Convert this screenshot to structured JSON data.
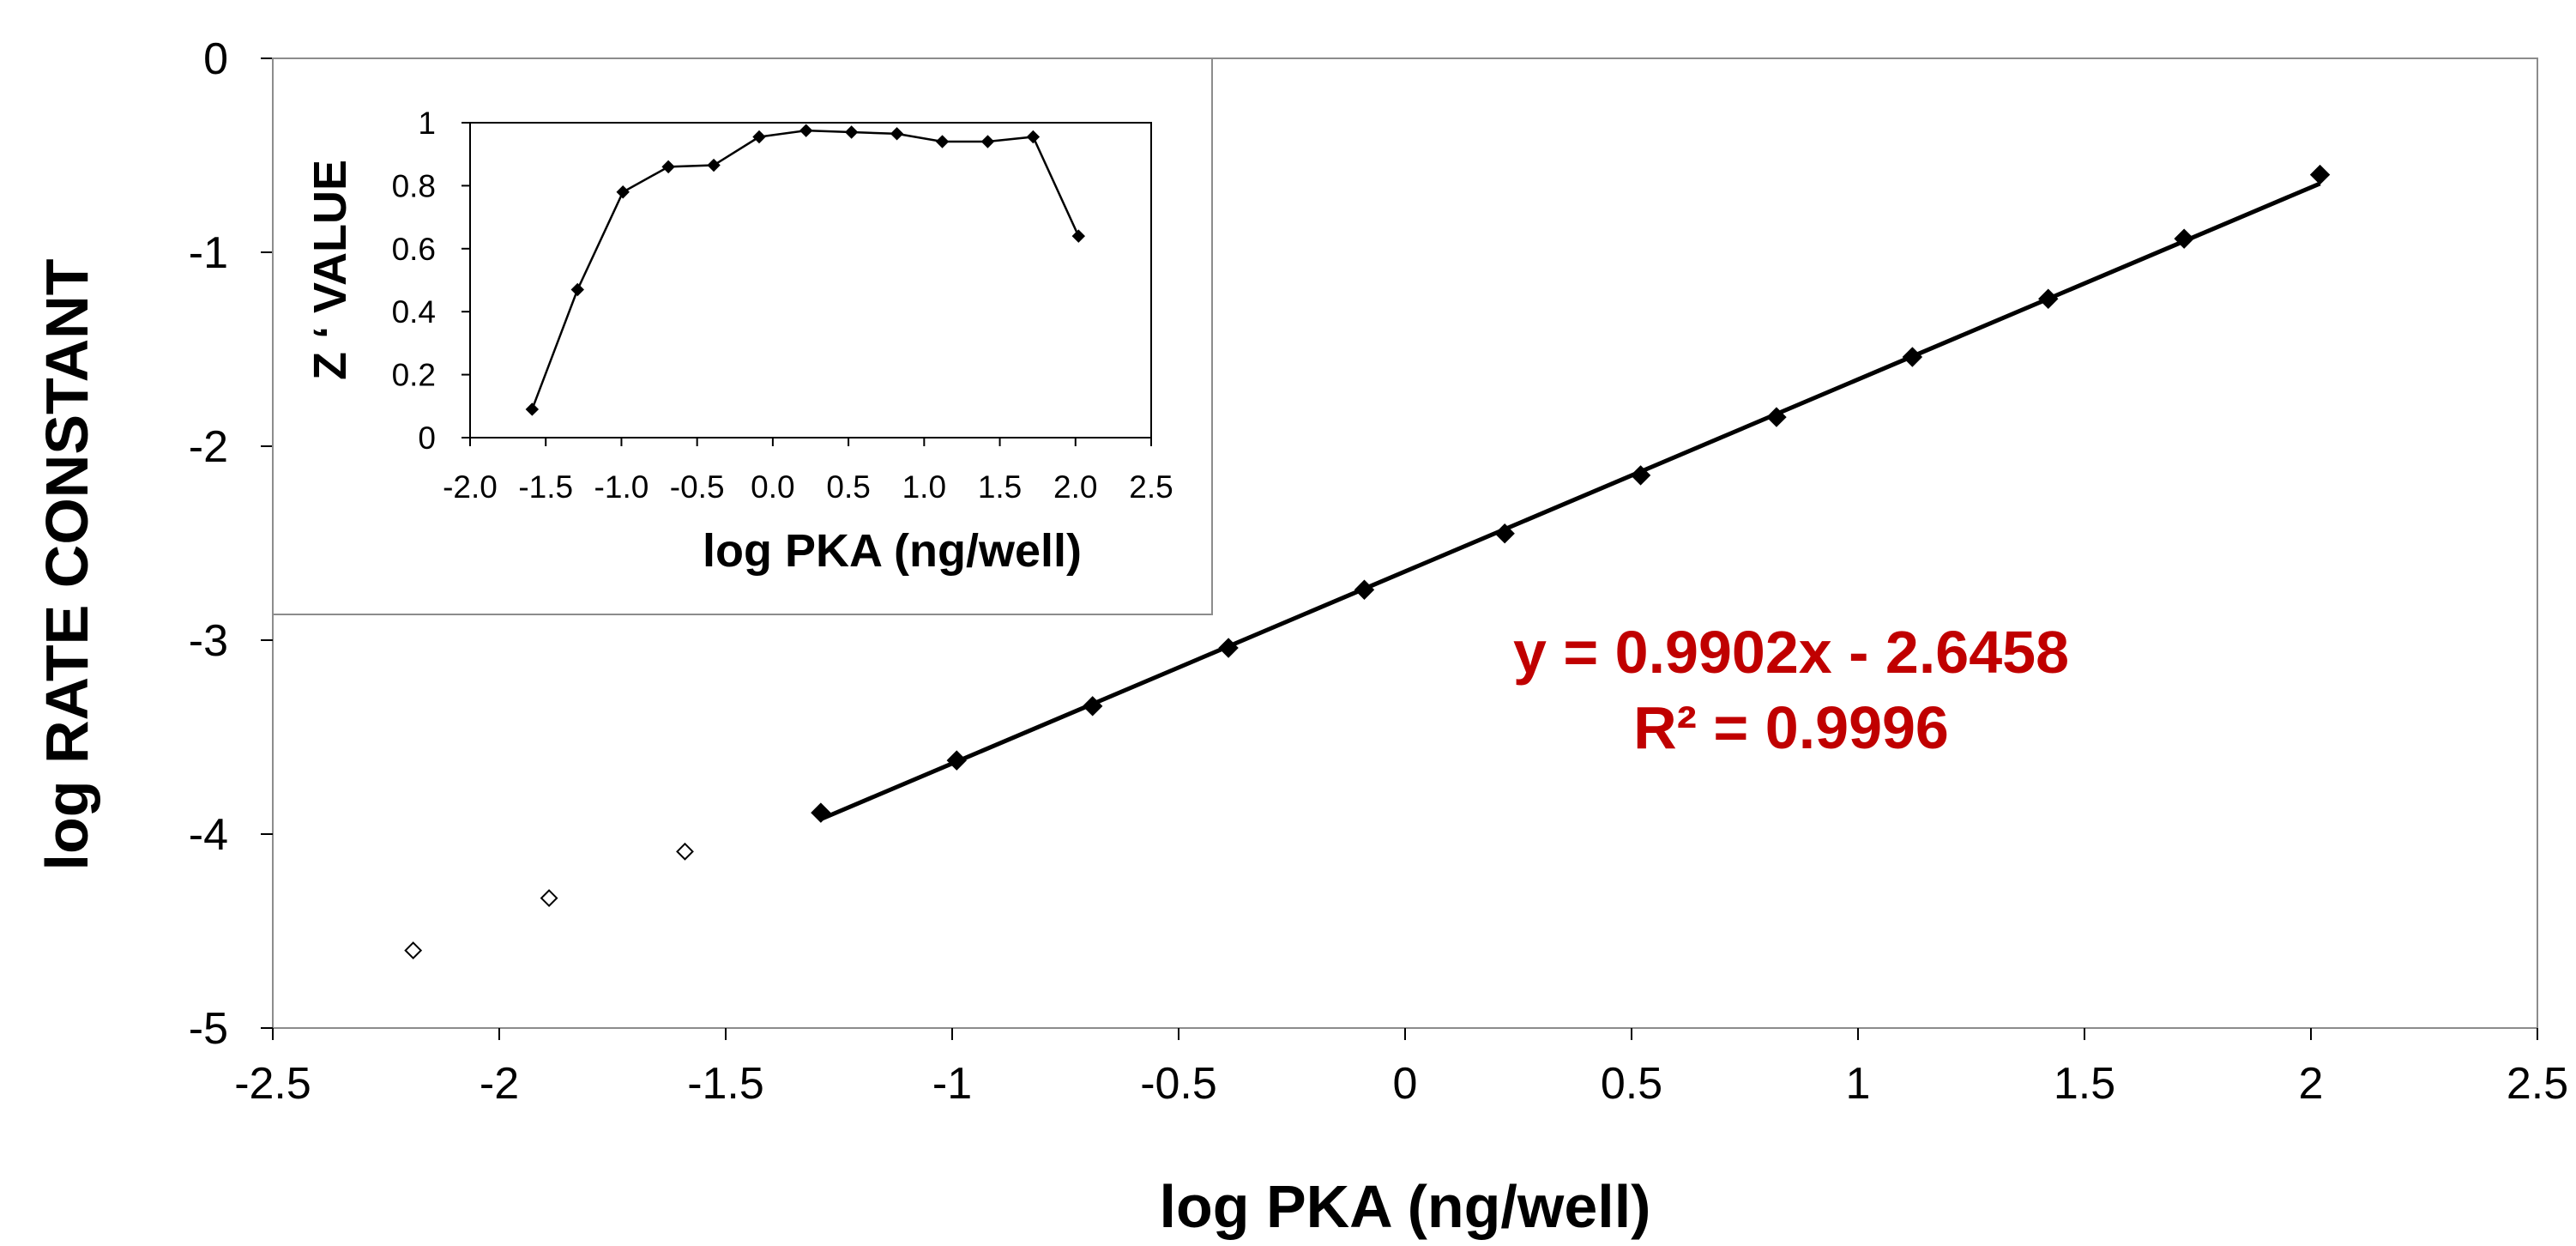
{
  "chart_data": [
    {
      "type": "scatter",
      "xlabel": "log PKA (ng/well)",
      "ylabel": "log RATE CONSTANT",
      "xlim": [
        -2.5,
        2.5
      ],
      "ylim": [
        -5,
        0
      ],
      "x_ticks": [
        "-2.5",
        "-2",
        "-1.5",
        "-1",
        "-0.5",
        "0",
        "0.5",
        "1",
        "1.5",
        "2",
        "2.5"
      ],
      "y_ticks": [
        "0",
        "-1",
        "-2",
        "-3",
        "-4",
        "-5"
      ],
      "grid": false,
      "series": [
        {
          "marker": "filled-diamond",
          "color": "#000000",
          "x": [
            -1.29,
            -0.99,
            -0.69,
            -0.39,
            -0.09,
            0.22,
            0.52,
            0.82,
            1.12,
            1.42,
            1.72,
            2.02
          ],
          "y": [
            -3.89,
            -3.62,
            -3.34,
            -3.04,
            -2.74,
            -2.45,
            -2.15,
            -1.85,
            -1.54,
            -1.24,
            -0.93,
            -0.6
          ]
        },
        {
          "marker": "open-diamond",
          "color": "#000000",
          "x": [
            -2.19,
            -1.89,
            -1.59
          ],
          "y": [
            -4.6,
            -4.33,
            -4.09
          ]
        }
      ],
      "trendline": {
        "slope": 0.9902,
        "intercept": -2.6458,
        "x_range": [
          -1.29,
          2.02
        ],
        "equation": "y = 0.9902x - 2.6458",
        "r_squared": "R² = 0.9996",
        "color": "#c00000"
      }
    },
    {
      "type": "line",
      "inset": true,
      "xlabel": "log PKA (ng/well)",
      "ylabel": "Z ‘ VALUE",
      "xlim": [
        -2.0,
        2.5
      ],
      "ylim": [
        0,
        1
      ],
      "x_ticks": [
        "-2.0",
        "-1.5",
        "-1.0",
        "-0.5",
        "0.0",
        "0.5",
        "1.0",
        "1.5",
        "2.0",
        "2.5"
      ],
      "y_ticks": [
        "1",
        "0.8",
        "0.6",
        "0.4",
        "0.2",
        "0"
      ],
      "series": [
        {
          "marker": "filled-diamond",
          "color": "#000000",
          "x": [
            -1.59,
            -1.29,
            -0.99,
            -0.69,
            -0.39,
            -0.09,
            0.22,
            0.52,
            0.82,
            1.12,
            1.42,
            1.72,
            2.02
          ],
          "y": [
            0.09,
            0.47,
            0.78,
            0.86,
            0.865,
            0.955,
            0.975,
            0.97,
            0.965,
            0.94,
            0.94,
            0.955,
            0.64
          ]
        }
      ]
    }
  ]
}
